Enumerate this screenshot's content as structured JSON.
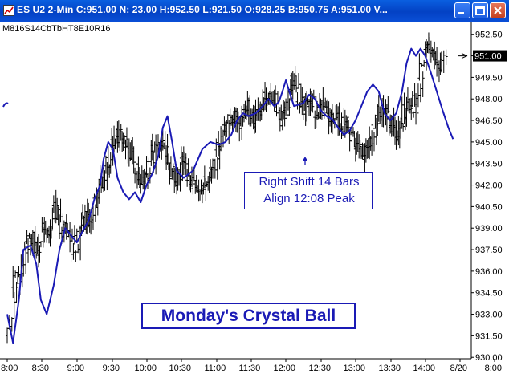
{
  "window": {
    "title": "ES U2 2-Min C:951.00 N: 23.00 H:952.50 L:921.50 O:928.25 B:950.75 A:951.00 V...",
    "study_label": "M816S14CbTbHT8E10R16",
    "buttons": [
      "minimize",
      "maximize",
      "close"
    ]
  },
  "annotations": {
    "shift_line1": "Right Shift 14 Bars",
    "shift_line2": "Align 12:08 Peak",
    "crystal_ball": "Monday's Crystal Ball"
  },
  "chart_data": {
    "type": "line",
    "title": "",
    "instrument": "ES U2",
    "interval": "2-Min",
    "ylim": [
      929.9,
      953.1
    ],
    "y_ticks": [
      930.0,
      931.5,
      933.0,
      934.5,
      936.0,
      937.5,
      939.0,
      940.5,
      942.0,
      943.5,
      945.0,
      946.5,
      948.0,
      949.5,
      951.0,
      952.5
    ],
    "y_tick_labels": [
      "930.00",
      "931.50",
      "933.00",
      "934.50",
      "936.00",
      "937.50",
      "939.00",
      "940.50",
      "942.00",
      "943.50",
      "945.00",
      "946.50",
      "948.00",
      "949.50",
      "951.00",
      "952.50"
    ],
    "x_ticks": [
      "8:00",
      "8:30",
      "9:00",
      "9:30",
      "10:00",
      "10:30",
      "11:00",
      "11:30",
      "12:00",
      "12:30",
      "13:00",
      "13:30",
      "14:00",
      "8/20",
      "8:00"
    ],
    "last_price": "951.00",
    "bar_series": {
      "name": "",
      "points": [
        {
          "t": 480,
          "c": 931.5
        },
        {
          "t": 485,
          "c": 935.5
        },
        {
          "t": 490,
          "c": 936.0
        },
        {
          "t": 495,
          "c": 938.0
        },
        {
          "t": 500,
          "c": 938.5
        },
        {
          "t": 505,
          "c": 937.5
        },
        {
          "t": 510,
          "c": 939.0
        },
        {
          "t": 515,
          "c": 938.5
        },
        {
          "t": 520,
          "c": 940.5
        },
        {
          "t": 525,
          "c": 939.0
        },
        {
          "t": 530,
          "c": 938.8
        },
        {
          "t": 535,
          "c": 937.5
        },
        {
          "t": 540,
          "c": 938.5
        },
        {
          "t": 545,
          "c": 940.0
        },
        {
          "t": 550,
          "c": 939.5
        },
        {
          "t": 555,
          "c": 941.5
        },
        {
          "t": 560,
          "c": 942.5
        },
        {
          "t": 565,
          "c": 943.5
        },
        {
          "t": 570,
          "c": 945.0
        },
        {
          "t": 575,
          "c": 945.5
        },
        {
          "t": 580,
          "c": 944.5
        },
        {
          "t": 585,
          "c": 944.0
        },
        {
          "t": 590,
          "c": 943.0
        },
        {
          "t": 595,
          "c": 942.0
        },
        {
          "t": 600,
          "c": 943.5
        },
        {
          "t": 605,
          "c": 944.5
        },
        {
          "t": 610,
          "c": 945.0
        },
        {
          "t": 615,
          "c": 944.0
        },
        {
          "t": 620,
          "c": 943.0
        },
        {
          "t": 625,
          "c": 942.5
        },
        {
          "t": 630,
          "c": 943.5
        },
        {
          "t": 635,
          "c": 942.5
        },
        {
          "t": 640,
          "c": 942.0
        },
        {
          "t": 645,
          "c": 941.5
        },
        {
          "t": 650,
          "c": 942.5
        },
        {
          "t": 655,
          "c": 943.0
        },
        {
          "t": 660,
          "c": 944.5
        },
        {
          "t": 665,
          "c": 946.0
        },
        {
          "t": 670,
          "c": 946.5
        },
        {
          "t": 675,
          "c": 947.0
        },
        {
          "t": 680,
          "c": 946.5
        },
        {
          "t": 685,
          "c": 947.5
        },
        {
          "t": 690,
          "c": 946.5
        },
        {
          "t": 695,
          "c": 947.0
        },
        {
          "t": 700,
          "c": 948.0
        },
        {
          "t": 705,
          "c": 948.5
        },
        {
          "t": 710,
          "c": 947.5
        },
        {
          "t": 715,
          "c": 946.5
        },
        {
          "t": 720,
          "c": 948.0
        },
        {
          "t": 725,
          "c": 949.5
        },
        {
          "t": 730,
          "c": 948.0
        },
        {
          "t": 735,
          "c": 947.5
        },
        {
          "t": 740,
          "c": 948.0
        },
        {
          "t": 745,
          "c": 947.0
        },
        {
          "t": 750,
          "c": 947.5
        },
        {
          "t": 755,
          "c": 946.5
        },
        {
          "t": 760,
          "c": 947.0
        },
        {
          "t": 765,
          "c": 946.0
        },
        {
          "t": 770,
          "c": 946.5
        },
        {
          "t": 775,
          "c": 945.5
        },
        {
          "t": 780,
          "c": 944.5
        },
        {
          "t": 785,
          "c": 944.0
        },
        {
          "t": 790,
          "c": 944.5
        },
        {
          "t": 795,
          "c": 946.0
        },
        {
          "t": 800,
          "c": 947.5
        },
        {
          "t": 805,
          "c": 947.0
        },
        {
          "t": 810,
          "c": 946.0
        },
        {
          "t": 815,
          "c": 945.5
        },
        {
          "t": 820,
          "c": 947.0
        },
        {
          "t": 825,
          "c": 948.0
        },
        {
          "t": 830,
          "c": 947.5
        },
        {
          "t": 835,
          "c": 950.0
        },
        {
          "t": 840,
          "c": 952.0
        },
        {
          "t": 845,
          "c": 951.0
        },
        {
          "t": 850,
          "c": 950.0
        },
        {
          "t": 855,
          "c": 951.0
        }
      ]
    },
    "forecast_series": {
      "name": "",
      "color": "#1a1ab5",
      "points": [
        {
          "t": 480,
          "v": 933.0
        },
        {
          "t": 485,
          "v": 931.0
        },
        {
          "t": 490,
          "v": 934.0
        },
        {
          "t": 494,
          "v": 937.5
        },
        {
          "t": 500,
          "v": 937.8
        },
        {
          "t": 505,
          "v": 936.5
        },
        {
          "t": 509,
          "v": 934.0
        },
        {
          "t": 514,
          "v": 933.0
        },
        {
          "t": 520,
          "v": 935.0
        },
        {
          "t": 525,
          "v": 937.5
        },
        {
          "t": 530,
          "v": 939.0
        },
        {
          "t": 535,
          "v": 938.5
        },
        {
          "t": 540,
          "v": 938.0
        },
        {
          "t": 545,
          "v": 938.8
        },
        {
          "t": 550,
          "v": 939.5
        },
        {
          "t": 555,
          "v": 941.0
        },
        {
          "t": 560,
          "v": 942.0
        },
        {
          "t": 563,
          "v": 943.8
        },
        {
          "t": 567,
          "v": 945.0
        },
        {
          "t": 571,
          "v": 944.5
        },
        {
          "t": 575,
          "v": 942.5
        },
        {
          "t": 580,
          "v": 941.5
        },
        {
          "t": 585,
          "v": 941.0
        },
        {
          "t": 590,
          "v": 941.5
        },
        {
          "t": 595,
          "v": 940.8
        },
        {
          "t": 600,
          "v": 942.0
        },
        {
          "t": 605,
          "v": 942.8
        },
        {
          "t": 610,
          "v": 944.0
        },
        {
          "t": 614,
          "v": 946.0
        },
        {
          "t": 618,
          "v": 946.8
        },
        {
          "t": 622,
          "v": 945.0
        },
        {
          "t": 626,
          "v": 943.0
        },
        {
          "t": 632,
          "v": 942.5
        },
        {
          "t": 640,
          "v": 943.0
        },
        {
          "t": 648,
          "v": 944.5
        },
        {
          "t": 655,
          "v": 945.0
        },
        {
          "t": 662,
          "v": 944.8
        },
        {
          "t": 668,
          "v": 945.0
        },
        {
          "t": 673,
          "v": 945.5
        },
        {
          "t": 678,
          "v": 946.5
        },
        {
          "t": 683,
          "v": 947.0
        },
        {
          "t": 688,
          "v": 946.8
        },
        {
          "t": 694,
          "v": 947.0
        },
        {
          "t": 700,
          "v": 947.5
        },
        {
          "t": 705,
          "v": 948.0
        },
        {
          "t": 710,
          "v": 947.5
        },
        {
          "t": 714,
          "v": 947.8
        },
        {
          "t": 717,
          "v": 948.5
        },
        {
          "t": 720,
          "v": 949.3
        },
        {
          "t": 723,
          "v": 948.5
        },
        {
          "t": 727,
          "v": 947.5
        },
        {
          "t": 731,
          "v": 947.6
        },
        {
          "t": 735,
          "v": 947.7
        },
        {
          "t": 740,
          "v": 948.3
        },
        {
          "t": 745,
          "v": 948.0
        },
        {
          "t": 750,
          "v": 947.2
        },
        {
          "t": 755,
          "v": 946.8
        },
        {
          "t": 760,
          "v": 946.6
        },
        {
          "t": 765,
          "v": 946.0
        },
        {
          "t": 770,
          "v": 945.5
        },
        {
          "t": 775,
          "v": 945.8
        },
        {
          "t": 780,
          "v": 946.5
        },
        {
          "t": 785,
          "v": 947.5
        },
        {
          "t": 790,
          "v": 948.5
        },
        {
          "t": 795,
          "v": 949.0
        },
        {
          "t": 800,
          "v": 948.5
        },
        {
          "t": 805,
          "v": 947.0
        },
        {
          "t": 810,
          "v": 946.5
        },
        {
          "t": 815,
          "v": 947.0
        },
        {
          "t": 820,
          "v": 948.5
        },
        {
          "t": 824,
          "v": 950.5
        },
        {
          "t": 828,
          "v": 951.5
        },
        {
          "t": 832,
          "v": 951.0
        },
        {
          "t": 836,
          "v": 951.5
        },
        {
          "t": 840,
          "v": 951.0
        },
        {
          "t": 845,
          "v": 949.8
        },
        {
          "t": 850,
          "v": 948.5
        },
        {
          "t": 855,
          "v": 947.2
        },
        {
          "t": 860,
          "v": 946.0
        },
        {
          "t": 864,
          "v": 945.2
        }
      ]
    }
  }
}
